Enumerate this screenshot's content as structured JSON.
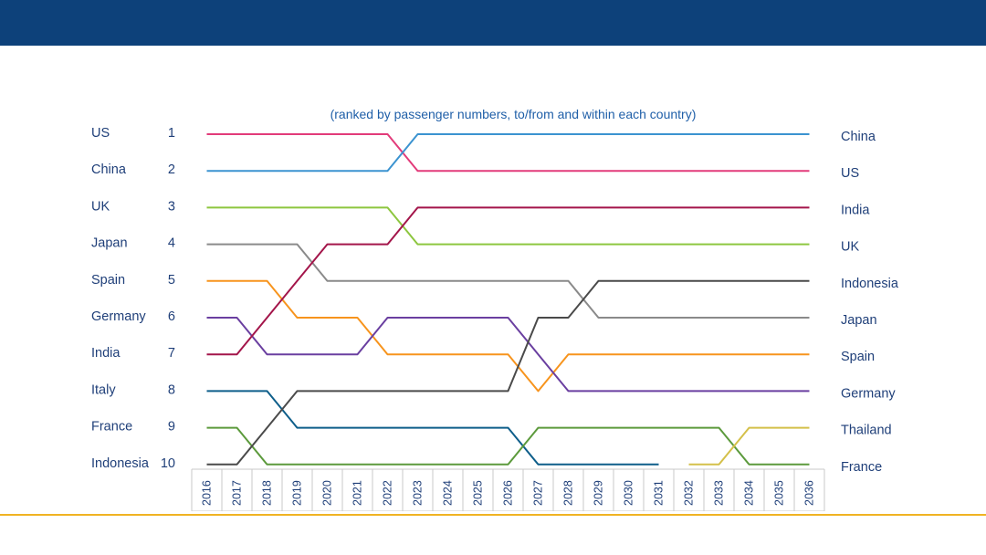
{
  "header": {
    "title": ""
  },
  "chart_data": {
    "type": "line",
    "title": "",
    "subtitle": "(ranked by passenger numbers, to/from and within each country)",
    "xlabel": "",
    "ylabel": "",
    "x": [
      "2016",
      "2017",
      "2018",
      "2019",
      "2020",
      "2021",
      "2022",
      "2023",
      "2024",
      "2025",
      "2026",
      "2027",
      "2028",
      "2029",
      "2030",
      "2031",
      "2032",
      "2033",
      "2034",
      "2035",
      "2036"
    ],
    "ranks": [
      "1",
      "2",
      "3",
      "4",
      "5",
      "6",
      "7",
      "8",
      "9",
      "10"
    ],
    "left_labels": [
      "US",
      "China",
      "UK",
      "Japan",
      "Spain",
      "Germany",
      "India",
      "Italy",
      "France",
      "Indonesia"
    ],
    "right_labels": [
      "China",
      "US",
      "India",
      "UK",
      "Indonesia",
      "Japan",
      "Spain",
      "Germany",
      "Thailand",
      "France"
    ],
    "ylim": [
      1,
      10
    ],
    "y_inverted": true,
    "grid": false,
    "legend": "none",
    "series": [
      {
        "name": "US",
        "color": "#e23b7a",
        "values": [
          1,
          1,
          1,
          1,
          1,
          1,
          1,
          2,
          2,
          2,
          2,
          2,
          2,
          2,
          2,
          2,
          2,
          2,
          2,
          2,
          2
        ]
      },
      {
        "name": "China",
        "color": "#3b93d0",
        "values": [
          2,
          2,
          2,
          2,
          2,
          2,
          2,
          1,
          1,
          1,
          1,
          1,
          1,
          1,
          1,
          1,
          1,
          1,
          1,
          1,
          1
        ]
      },
      {
        "name": "UK",
        "color": "#8dc63f",
        "values": [
          3,
          3,
          3,
          3,
          3,
          3,
          3,
          4,
          4,
          4,
          4,
          4,
          4,
          4,
          4,
          4,
          4,
          4,
          4,
          4,
          4
        ]
      },
      {
        "name": "Japan",
        "color": "#8a8a8a",
        "values": [
          4,
          4,
          4,
          4,
          5,
          5,
          5,
          5,
          5,
          5,
          5,
          5,
          5,
          6,
          6,
          6,
          6,
          6,
          6,
          6,
          6
        ]
      },
      {
        "name": "Spain",
        "color": "#f7941d",
        "values": [
          5,
          5,
          5,
          6,
          6,
          6,
          7,
          7,
          7,
          7,
          7,
          8,
          7,
          7,
          7,
          7,
          7,
          7,
          7,
          7,
          7
        ]
      },
      {
        "name": "Germany",
        "color": "#6a3fa0",
        "values": [
          6,
          6,
          7,
          7,
          7,
          7,
          6,
          6,
          6,
          6,
          6,
          7,
          8,
          8,
          8,
          8,
          8,
          8,
          8,
          8,
          8
        ]
      },
      {
        "name": "India",
        "color": "#a3154a",
        "values": [
          7,
          7,
          6,
          5,
          4,
          4,
          4,
          3,
          3,
          3,
          3,
          3,
          3,
          3,
          3,
          3,
          3,
          3,
          3,
          3,
          3
        ]
      },
      {
        "name": "Italy",
        "color": "#0e5e8a",
        "values": [
          8,
          8,
          8,
          9,
          9,
          9,
          9,
          9,
          9,
          9,
          9,
          10,
          10,
          10,
          10,
          10,
          null,
          null,
          null,
          null,
          null
        ]
      },
      {
        "name": "France",
        "color": "#5c9a3c",
        "values": [
          9,
          9,
          10,
          10,
          10,
          10,
          10,
          10,
          10,
          10,
          10,
          9,
          9,
          9,
          9,
          9,
          9,
          9,
          10,
          10,
          10
        ]
      },
      {
        "name": "Indonesia",
        "color": "#4a4a4a",
        "values": [
          10,
          10,
          9,
          8,
          8,
          8,
          8,
          8,
          8,
          8,
          8,
          6,
          6,
          5,
          5,
          5,
          5,
          5,
          5,
          5,
          5
        ]
      },
      {
        "name": "Thailand",
        "color": "#d4c04a",
        "values": [
          null,
          null,
          null,
          null,
          null,
          null,
          null,
          null,
          null,
          null,
          null,
          null,
          null,
          null,
          null,
          null,
          10,
          10,
          9,
          9,
          9
        ]
      }
    ]
  }
}
